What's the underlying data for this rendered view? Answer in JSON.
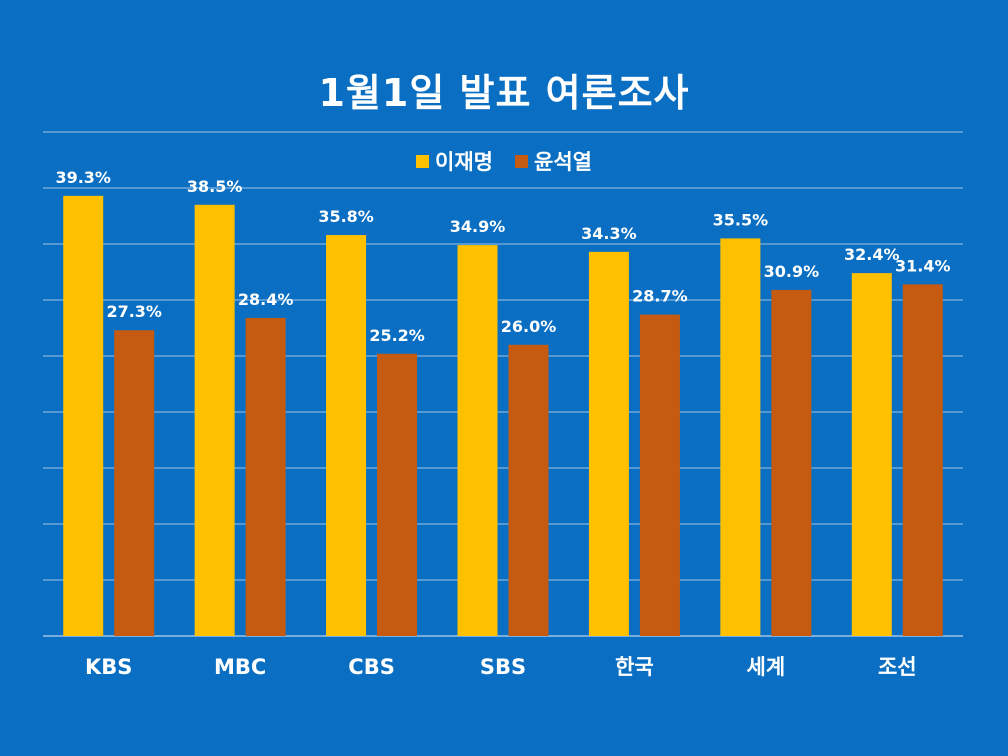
{
  "chart_data": {
    "type": "bar",
    "title": "1월1일 발표 여론조사",
    "categories": [
      "KBS",
      "MBC",
      "CBS",
      "SBS",
      "한국",
      "세계",
      "조선"
    ],
    "series": [
      {
        "name": "이재명",
        "color": "#ffc000",
        "values": [
          39.3,
          38.5,
          35.8,
          34.9,
          34.3,
          35.5,
          32.4
        ],
        "labels": [
          "39.3%",
          "38.5%",
          "35.8%",
          "34.9%",
          "34.3%",
          "35.5%",
          "32.4%"
        ]
      },
      {
        "name": "윤석열",
        "color": "#c55a11",
        "values": [
          27.3,
          28.4,
          25.2,
          26.0,
          28.7,
          30.9,
          31.4
        ],
        "labels": [
          "27.3%",
          "28.4%",
          "25.2%",
          "26.0%",
          "28.7%",
          "30.9%",
          "31.4%"
        ]
      }
    ],
    "ylim": [
      0,
      45
    ],
    "grid": true,
    "grid_step": 5,
    "legend_position": "top-center",
    "xlabel": "",
    "ylabel": "",
    "background_color": "#0a6fc2",
    "grid_color": "#9dc3e6"
  }
}
